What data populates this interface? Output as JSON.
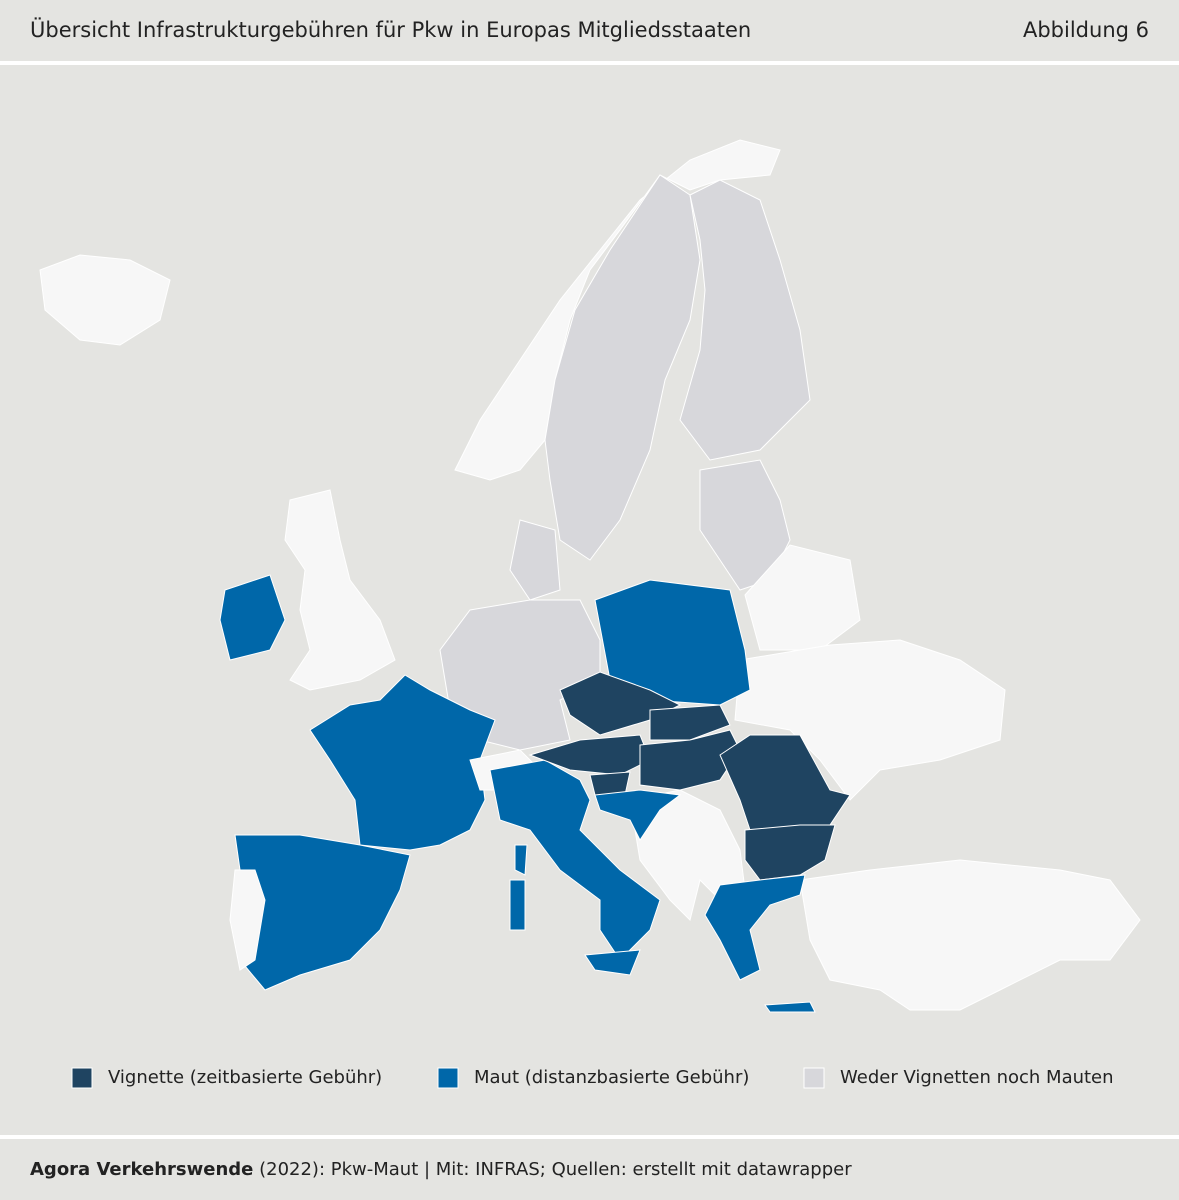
{
  "header": {
    "title": "Übersicht Infrastrukturgebühren für Pkw in Europas Mitgliedsstaaten",
    "figure_label": "Abbildung 6"
  },
  "legend": [
    {
      "label": "Vignette (zeitbasierte Gebühr)",
      "color": "#1f4461"
    },
    {
      "label": "Maut (distanzbasierte Gebühr)",
      "color": "#0067a9"
    },
    {
      "label": "Weder Vignetten noch Mauten",
      "color": "#d7d7db"
    }
  ],
  "footer": {
    "author": "Agora Verkehrswende",
    "source": "(2022): Pkw-Maut | Mit: INFRAS; Quellen: erstellt mit datawrapper"
  }
}
